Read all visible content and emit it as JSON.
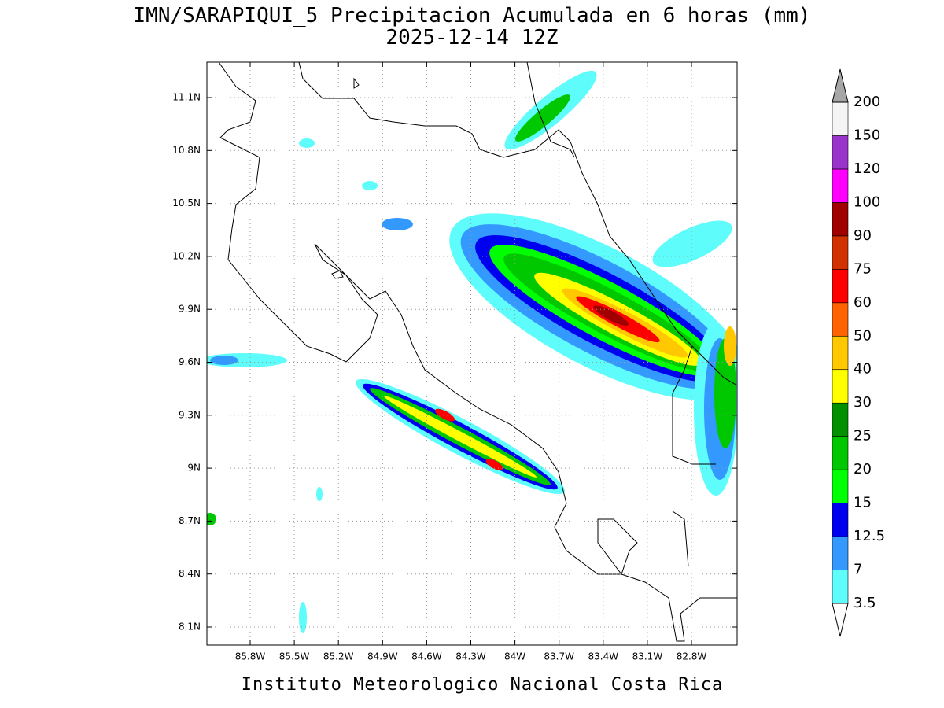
{
  "title": "IMN/SARAPIQUI_5 Precipitacion Acumulada en 6 horas (mm)",
  "subtitle": "2025-12-14 12Z",
  "footer": "Instituto Meteorologico Nacional Costa Rica",
  "map": {
    "lat_ticks": [
      "11.1N",
      "10.8N",
      "10.5N",
      "10.2N",
      "9.9N",
      "9.6N",
      "9.3N",
      "9N",
      "8.7N",
      "8.4N",
      "8.1N"
    ],
    "lon_ticks": [
      "85.8W",
      "85.5W",
      "85.2W",
      "84.9W",
      "84.6W",
      "84.3W",
      "84W",
      "83.7W",
      "83.4W",
      "83.1W",
      "82.8W"
    ],
    "grid": true
  },
  "colorbar": {
    "levels": [
      3.5,
      7,
      12.5,
      15,
      20,
      25,
      30,
      40,
      50,
      60,
      75,
      90,
      100,
      120,
      150,
      200
    ],
    "colors": [
      "#5ffcfc",
      "#3399ff",
      "#0000f0",
      "#00ff00",
      "#00c800",
      "#009000",
      "#ffff00",
      "#ffc800",
      "#ff6400",
      "#ff0000",
      "#d23200",
      "#a00000",
      "#ff00ff",
      "#9933cc",
      "#f5f5f5"
    ],
    "over_color": "#a6a6a6",
    "under_color": "#ffffff"
  }
}
